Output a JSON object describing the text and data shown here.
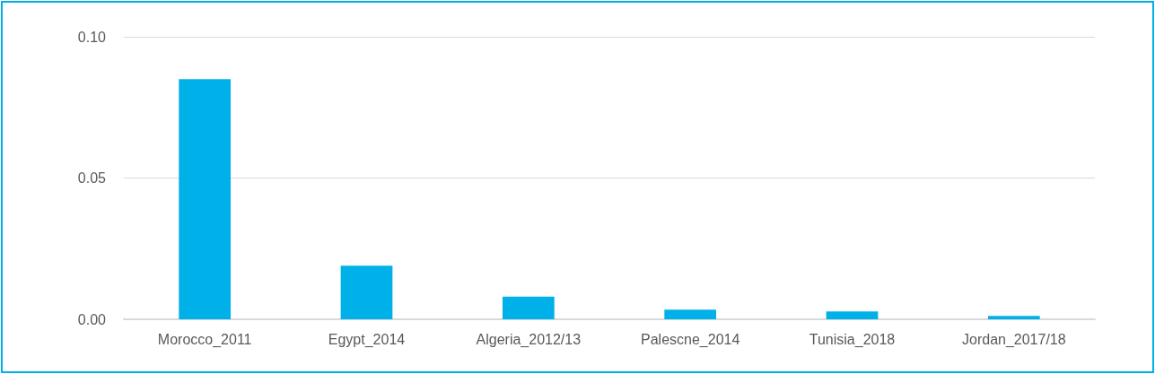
{
  "chart_data": {
    "type": "bar",
    "categories": [
      "Morocco_2011",
      "Egypt_2014",
      "Algeria_2012/13",
      "Palescne_2014",
      "Tunisia_2018",
      "Jordan_2017/18"
    ],
    "values": [
      0.085,
      0.019,
      0.008,
      0.0034,
      0.0028,
      0.0012
    ],
    "color": "#00b0e8",
    "ylim": [
      0,
      0.1
    ],
    "yticks": [
      {
        "value": 0,
        "label": "0.00"
      },
      {
        "value": 0.05,
        "label": "0.05"
      },
      {
        "value": 0.1,
        "label": "0.10"
      }
    ],
    "grid": "y"
  }
}
